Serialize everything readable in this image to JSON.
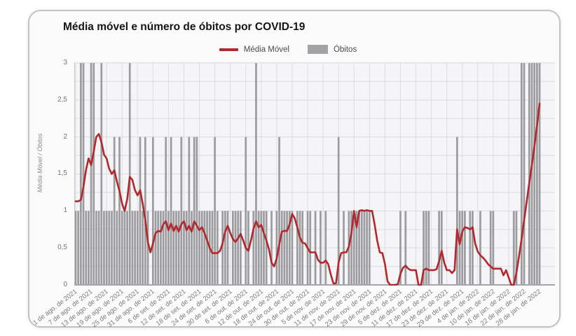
{
  "card": {
    "title": "Média móvel e número de óbitos por COVID-19"
  },
  "legend": [
    {
      "type": "line",
      "label": "Média Móvel",
      "color": "#b1282e"
    },
    {
      "type": "box",
      "label": "Óbitos",
      "color": "#a3a2a4"
    }
  ],
  "chart_data": {
    "type": "mixed-bar-line",
    "title": "Média móvel e número de óbitos por COVID-19",
    "xlabel": "",
    "ylabel": "Média Móvel / Óbitos",
    "ylim": [
      0,
      3
    ],
    "y_ticks": [
      "0",
      "0,5",
      "1",
      "1,5",
      "2",
      "2,5",
      "3"
    ],
    "grid": {
      "y_step": 0.25,
      "on": true
    },
    "legend_position": "top",
    "x_tick_interval_days": 6,
    "x_tick_labels": [
      "1 de ago. de 2021",
      "7 de ago. de 2021",
      "13 de ago. de 2021",
      "19 de ago. de 2021",
      "25 de ago. de 2021",
      "31 de ago. de 2021",
      "6 de set. de 2021",
      "12 de set. de 2021",
      "18 de set. de 2021",
      "24 de set. de 2021",
      "30 de set. de 2021",
      "6 de out. de 2021",
      "12 de out. de 2021",
      "18 de out. de 2021",
      "24 de out. de 2021",
      "30 de out. de 2021",
      "5 de nov. de 2021",
      "11 de nov. de 2021",
      "17 de nov. de 2021",
      "23 de nov. de 2021",
      "29 de nov. de 2021",
      "5 de dez. de 2021",
      "11 de dez. de 2021",
      "17 de dez. de 2021",
      "23 de dez. de 2021",
      "29 de dez. de 2021",
      "4 de jan. de 2022",
      "10 de jan. de 2022",
      "16 de jan. de 2022",
      "22 de jan. de 2022",
      "28 de jan. de 2022"
    ],
    "colors": {
      "plot_bg": "#f5f4f6",
      "grid_h": "#dddbde",
      "grid_v": "#dedcde",
      "baseline": "#a6a5a8",
      "axis_line": "#c4c2c5"
    },
    "series": [
      {
        "name": "Média Móvel",
        "type": "line",
        "color": "#b1282e",
        "values": [
          1.13,
          1.13,
          1.15,
          1.32,
          1.55,
          1.71,
          1.62,
          1.8,
          2.0,
          2.04,
          1.93,
          1.76,
          1.71,
          1.57,
          1.5,
          1.55,
          1.4,
          1.27,
          1.1,
          1.0,
          1.16,
          1.46,
          1.42,
          1.28,
          1.21,
          1.28,
          1.1,
          0.88,
          0.58,
          0.44,
          0.56,
          0.7,
          0.73,
          0.72,
          0.82,
          0.86,
          0.74,
          0.83,
          0.73,
          0.8,
          0.72,
          0.82,
          0.86,
          0.74,
          0.8,
          0.72,
          0.86,
          0.8,
          0.74,
          0.78,
          0.7,
          0.6,
          0.5,
          0.43,
          0.43,
          0.43,
          0.46,
          0.56,
          0.72,
          0.8,
          0.7,
          0.62,
          0.58,
          0.63,
          0.69,
          0.6,
          0.5,
          0.46,
          0.6,
          0.76,
          0.86,
          0.78,
          0.81,
          0.7,
          0.6,
          0.48,
          0.3,
          0.25,
          0.36,
          0.55,
          0.72,
          0.73,
          0.73,
          0.82,
          0.96,
          0.9,
          0.78,
          0.64,
          0.57,
          0.56,
          0.5,
          0.44,
          0.44,
          0.44,
          0.34,
          0.3,
          0.3,
          0.33,
          0.28,
          0.14,
          0.02,
          0.02,
          0.3,
          0.43,
          0.44,
          0.44,
          0.52,
          0.7,
          1.0,
          0.78,
          1.0,
          1.01,
          1.0,
          1.01,
          1.0,
          1.0,
          0.82,
          0.6,
          0.44,
          0.43,
          0.28,
          0.05,
          0.0,
          0.0,
          0.0,
          0.01,
          0.15,
          0.23,
          0.26,
          0.22,
          0.2,
          0.2,
          0.2,
          0.0,
          0.0,
          0.2,
          0.22,
          0.2,
          0.2,
          0.2,
          0.21,
          0.32,
          0.46,
          0.3,
          0.2,
          0.2,
          0.16,
          0.2,
          0.75,
          0.55,
          0.72,
          0.78,
          0.77,
          0.75,
          0.78,
          0.56,
          0.45,
          0.4,
          0.37,
          0.33,
          0.28,
          0.25,
          0.22,
          0.22,
          0.22,
          0.22,
          0.13,
          0.2,
          0.1,
          0.0,
          0.0,
          0.16,
          0.38,
          0.62,
          0.88,
          1.12,
          1.38,
          1.62,
          1.88,
          2.16,
          2.45
        ]
      },
      {
        "name": "Óbitos",
        "type": "bar",
        "color": "#9c9b9e",
        "values": [
          1,
          1,
          3,
          3,
          1,
          1,
          3,
          3,
          1,
          1,
          3,
          1,
          1,
          1,
          1,
          2,
          1,
          2,
          1,
          1,
          1,
          3,
          1,
          1,
          1,
          2,
          1,
          2,
          1,
          0,
          2,
          1,
          1,
          1,
          1,
          2,
          1,
          2,
          1,
          1,
          1,
          2,
          1,
          1,
          2,
          1,
          2,
          2,
          1,
          1,
          1,
          1,
          1,
          1,
          2,
          1,
          0,
          1,
          1,
          1,
          0,
          1,
          1,
          1,
          1,
          0,
          2,
          1,
          0,
          1,
          3,
          1,
          1,
          1,
          1,
          0,
          1,
          0,
          1,
          2,
          1,
          1,
          1,
          1,
          1,
          0,
          1,
          1,
          1,
          0,
          1,
          1,
          0,
          1,
          0,
          1,
          0,
          1,
          0,
          0,
          0,
          0,
          2,
          0,
          1,
          0,
          1,
          1,
          1,
          1,
          1,
          1,
          1,
          1,
          1,
          0,
          0,
          0,
          0,
          0,
          0,
          0,
          0,
          0,
          0,
          0,
          1,
          0,
          1,
          0,
          0,
          0,
          0,
          0,
          0,
          1,
          1,
          1,
          0,
          0,
          0,
          1,
          1,
          0,
          0,
          0,
          0,
          0,
          2,
          1,
          1,
          1,
          0,
          1,
          1,
          0,
          0,
          1,
          0,
          0,
          0,
          1,
          1,
          0,
          0,
          0,
          0,
          0,
          0,
          0,
          1,
          1,
          0,
          3,
          3,
          0,
          3,
          3,
          3,
          3,
          3
        ]
      }
    ]
  }
}
